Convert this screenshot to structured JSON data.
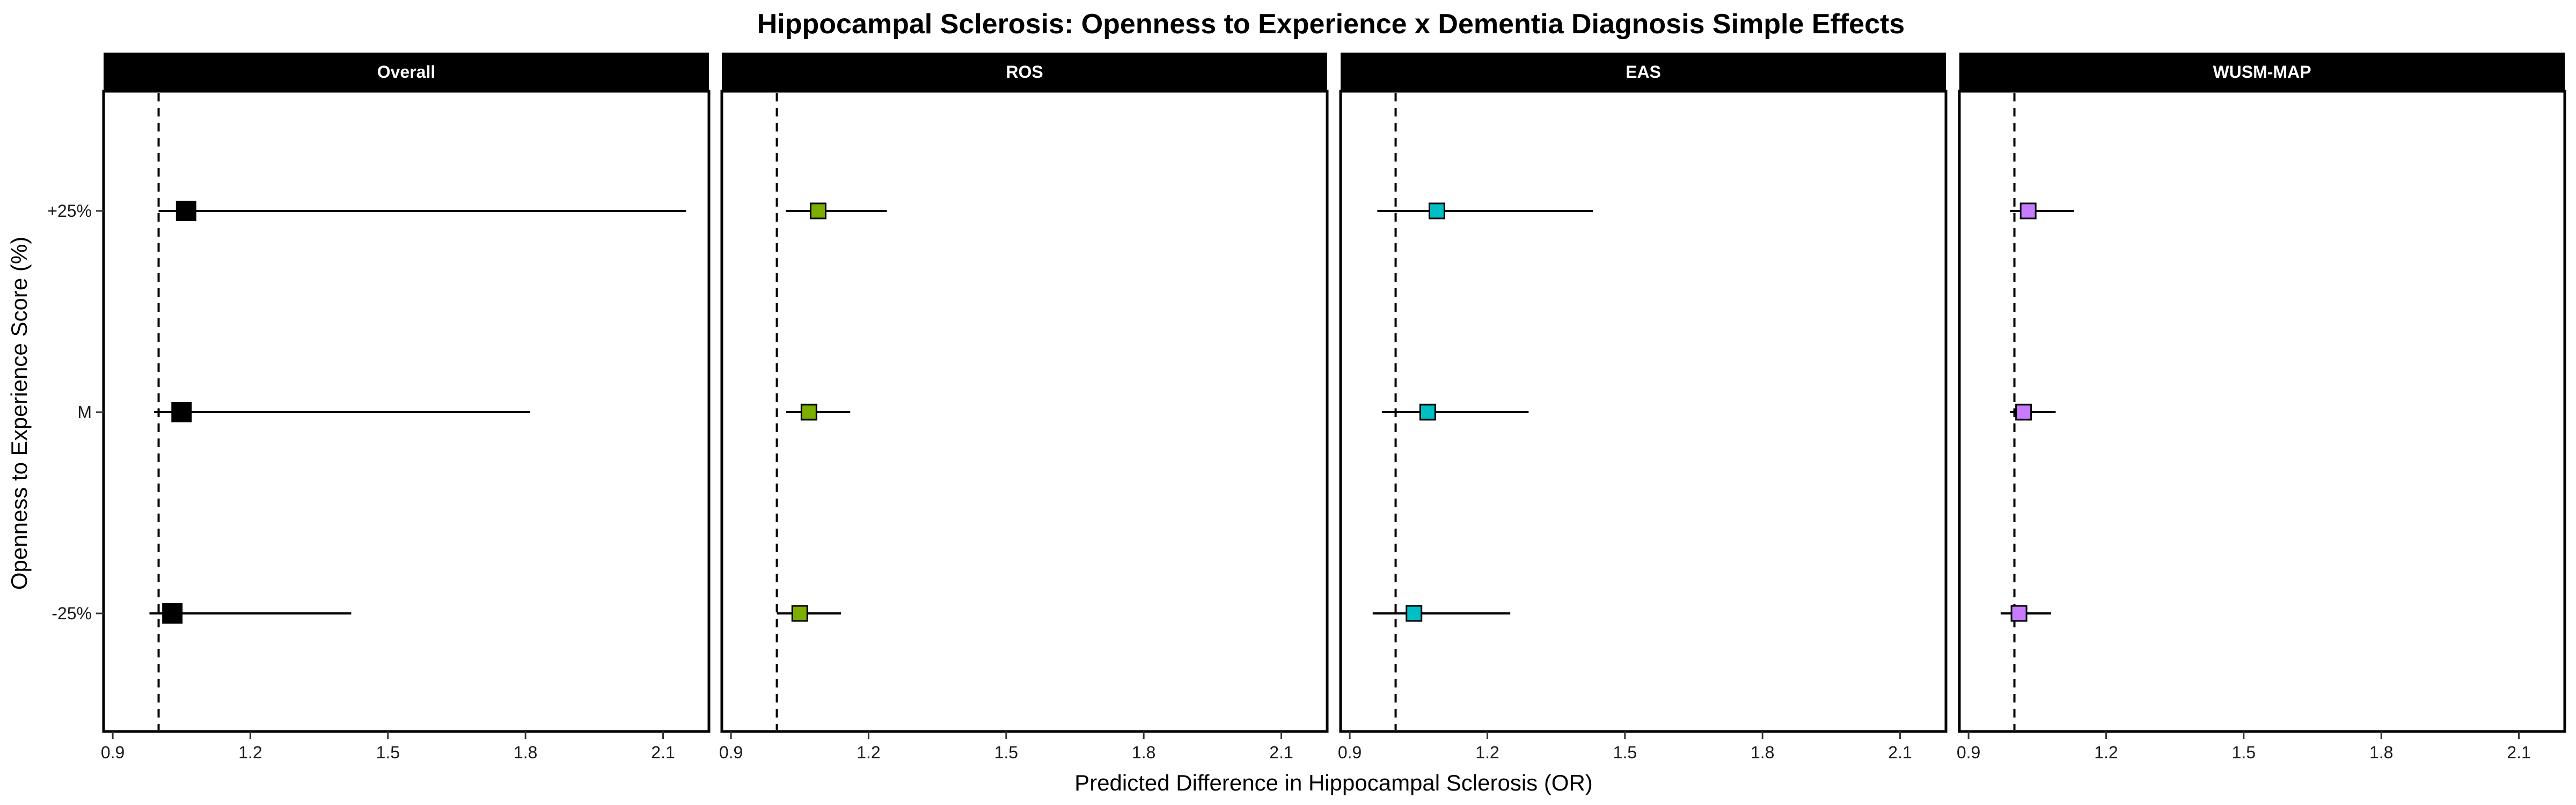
{
  "chart_data": {
    "type": "forest",
    "title": "Hippocampal Sclerosis: Openness to Experience x Dementia Diagnosis Simple Effects",
    "xlabel": "Predicted Difference in Hippocampal Sclerosis (OR)",
    "ylabel": "Openness to Experience Score (%)",
    "xlim": [
      0.88,
      2.2
    ],
    "x_ticks": [
      0.9,
      1.2,
      1.5,
      1.8,
      2.1
    ],
    "x_tick_labels": [
      "0.9",
      "1.2",
      "1.5",
      "1.8",
      "2.1"
    ],
    "y_categories": [
      "+25%",
      "M",
      "-25%"
    ],
    "reference_line": 1.0,
    "grid": false,
    "panels": [
      {
        "name": "Overall",
        "color": "#000000",
        "points": [
          {
            "y": "+25%",
            "estimate": 1.06,
            "lower": 1.0,
            "upper": 2.15
          },
          {
            "y": "M",
            "estimate": 1.05,
            "lower": 0.99,
            "upper": 1.81
          },
          {
            "y": "-25%",
            "estimate": 1.03,
            "lower": 0.98,
            "upper": 1.42
          }
        ]
      },
      {
        "name": "ROS",
        "color": "#7CAE00",
        "points": [
          {
            "y": "+25%",
            "estimate": 1.09,
            "lower": 1.02,
            "upper": 1.24
          },
          {
            "y": "M",
            "estimate": 1.07,
            "lower": 1.02,
            "upper": 1.16
          },
          {
            "y": "-25%",
            "estimate": 1.05,
            "lower": 1.0,
            "upper": 1.14
          }
        ]
      },
      {
        "name": "EAS",
        "color": "#00BFC4",
        "points": [
          {
            "y": "+25%",
            "estimate": 1.09,
            "lower": 0.96,
            "upper": 1.43
          },
          {
            "y": "M",
            "estimate": 1.07,
            "lower": 0.97,
            "upper": 1.29
          },
          {
            "y": "-25%",
            "estimate": 1.04,
            "lower": 0.95,
            "upper": 1.25
          }
        ]
      },
      {
        "name": "WUSM-MAP",
        "color": "#C77CFF",
        "points": [
          {
            "y": "+25%",
            "estimate": 1.03,
            "lower": 0.99,
            "upper": 1.13
          },
          {
            "y": "M",
            "estimate": 1.02,
            "lower": 0.99,
            "upper": 1.09
          },
          {
            "y": "-25%",
            "estimate": 1.01,
            "lower": 0.97,
            "upper": 1.08
          }
        ]
      }
    ]
  }
}
